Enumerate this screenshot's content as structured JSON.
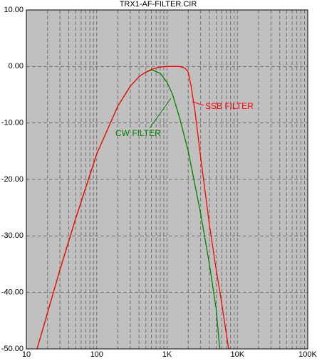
{
  "chart_data": {
    "type": "line",
    "title": "TRX1-AF-FILTER.CIR",
    "xscale": "log",
    "xminor": true,
    "grid": true,
    "background": "#c0c0c0",
    "xlim": [
      10,
      100000
    ],
    "xticks": [
      10,
      100,
      {
        "value": 1000,
        "label": "1K"
      },
      {
        "value": 10000,
        "label": "10K"
      },
      {
        "value": 100000,
        "label": "100K"
      }
    ],
    "ylim": [
      -50,
      10
    ],
    "yticks": [
      {
        "value": 10,
        "label": "10.00"
      },
      {
        "value": 0,
        "label": "0.00"
      },
      {
        "value": -10,
        "label": "-10.00"
      },
      {
        "value": -20,
        "label": "-20.00"
      },
      {
        "value": -30,
        "label": "-30.00"
      },
      {
        "value": -40,
        "label": "-40.00"
      },
      {
        "value": -50,
        "label": "-50.00"
      }
    ],
    "series": [
      {
        "name": "CW FILTER",
        "color": "#008000",
        "x": [
          14.2,
          20,
          30,
          50,
          100,
          200,
          300,
          400,
          500,
          610,
          800,
          1000,
          1200,
          1500,
          2000,
          3000,
          4000,
          5000,
          5600
        ],
        "values": [
          -50,
          -43.6,
          -36,
          -27,
          -15.5,
          -7,
          -3.5,
          -1.8,
          -1,
          -0.6,
          -1.2,
          -2.8,
          -5,
          -9,
          -15,
          -26,
          -35,
          -43,
          -50
        ]
      },
      {
        "name": "SSB FILTER",
        "color": "#ff0000",
        "x": [
          14.2,
          20,
          30,
          50,
          100,
          200,
          300,
          400,
          500,
          600,
          800,
          1000,
          1500,
          1800,
          2000,
          2200,
          2500,
          3000,
          4000,
          5000,
          6000,
          7500
        ],
        "values": [
          -50,
          -43.6,
          -36,
          -27,
          -15.5,
          -7,
          -3.5,
          -1.8,
          -1,
          -0.5,
          -0.1,
          0,
          0,
          -0.3,
          -1,
          -3.5,
          -8,
          -16,
          -28,
          -36,
          -42,
          -50
        ]
      }
    ]
  }
}
